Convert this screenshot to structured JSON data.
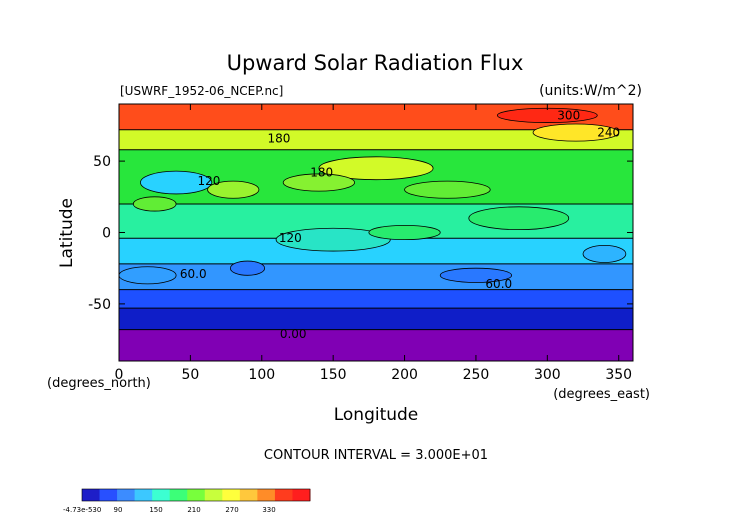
{
  "chart_data": {
    "type": "heatmap",
    "title": "Upward Solar Radiation Flux",
    "file_label": "[USWRF_1952-06_NCEP.nc]",
    "units_label": "(units:W/m^2)",
    "xlabel": "Longitude",
    "ylabel": "Latitude",
    "x_unit_label": "(degrees_east)",
    "y_unit_label": "(degrees_north)",
    "xlim": [
      0,
      360
    ],
    "ylim": [
      -90,
      90
    ],
    "x_ticks": [
      0,
      50,
      100,
      150,
      200,
      250,
      300,
      350
    ],
    "y_ticks": [
      -50,
      0,
      50
    ],
    "contour_interval_text": "CONTOUR INTERVAL = 3.000E+01",
    "contour_labels": [
      {
        "text": "300",
        "x": 315,
        "y": 82
      },
      {
        "text": "240",
        "x": 343,
        "y": 70
      },
      {
        "text": "180",
        "x": 112,
        "y": 66
      },
      {
        "text": "180",
        "x": 142,
        "y": 42
      },
      {
        "text": "120",
        "x": 63,
        "y": 36
      },
      {
        "text": "120",
        "x": 120,
        "y": -4
      },
      {
        "text": "60.0",
        "x": 52,
        "y": -29
      },
      {
        "text": "60.0",
        "x": 266,
        "y": -36
      },
      {
        "text": "0.00",
        "x": 122,
        "y": -71
      }
    ],
    "latitude_bands": [
      {
        "lat_min": -90,
        "lat_max": -68,
        "value": 0
      },
      {
        "lat_min": -68,
        "lat_max": -53,
        "value": 15
      },
      {
        "lat_min": -53,
        "lat_max": -40,
        "value": 40
      },
      {
        "lat_min": -40,
        "lat_max": -22,
        "value": 75
      },
      {
        "lat_min": -22,
        "lat_max": -4,
        "value": 115
      },
      {
        "lat_min": -4,
        "lat_max": 20,
        "value": 140
      },
      {
        "lat_min": 20,
        "lat_max": 58,
        "value": 160
      },
      {
        "lat_min": 58,
        "lat_max": 72,
        "value": 205
      },
      {
        "lat_min": 72,
        "lat_max": 90,
        "value": 290
      }
    ],
    "colorbar": {
      "min_label": "-4.73e-530",
      "labels": [
        "90",
        "150",
        "210",
        "270",
        "330"
      ],
      "colors": [
        "#1e1ec8",
        "#2850ff",
        "#3c8cff",
        "#3cc8ff",
        "#3cffd2",
        "#3cff78",
        "#78ff3c",
        "#c8ff3c",
        "#ffff3c",
        "#ffc83c",
        "#ff8c28",
        "#ff3c1e",
        "#ff1e1e"
      ]
    }
  }
}
